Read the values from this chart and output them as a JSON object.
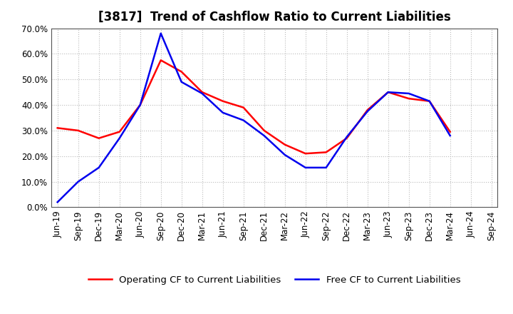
{
  "title": "[3817]  Trend of Cashflow Ratio to Current Liabilities",
  "x_labels": [
    "Jun-19",
    "Sep-19",
    "Dec-19",
    "Mar-20",
    "Jun-20",
    "Sep-20",
    "Dec-20",
    "Mar-21",
    "Jun-21",
    "Sep-21",
    "Dec-21",
    "Mar-22",
    "Jun-22",
    "Sep-22",
    "Dec-22",
    "Mar-23",
    "Jun-23",
    "Sep-23",
    "Dec-23",
    "Mar-24",
    "Jun-24",
    "Sep-24"
  ],
  "operating_cf": [
    0.31,
    0.3,
    0.27,
    0.295,
    0.4,
    0.575,
    0.53,
    0.45,
    0.415,
    0.39,
    0.3,
    0.245,
    0.21,
    0.215,
    0.27,
    0.38,
    0.45,
    0.425,
    0.415,
    0.295,
    null,
    null
  ],
  "free_cf": [
    0.02,
    0.1,
    0.155,
    0.27,
    0.4,
    0.68,
    0.49,
    0.445,
    0.37,
    0.34,
    0.28,
    0.205,
    0.155,
    0.155,
    0.275,
    0.375,
    0.45,
    0.445,
    0.415,
    0.28,
    null,
    null
  ],
  "ylim": [
    0.0,
    0.7
  ],
  "yticks": [
    0.0,
    0.1,
    0.2,
    0.3,
    0.4,
    0.5,
    0.6,
    0.7
  ],
  "operating_color": "#FF0000",
  "free_color": "#0000EE",
  "background_color": "#FFFFFF",
  "plot_bg_color": "#FFFFFF",
  "grid_color": "#BBBBBB",
  "spine_color": "#555555",
  "legend_operating": "Operating CF to Current Liabilities",
  "legend_free": "Free CF to Current Liabilities",
  "title_fontsize": 12,
  "axis_fontsize": 8.5,
  "legend_fontsize": 9.5,
  "line_width": 1.8
}
